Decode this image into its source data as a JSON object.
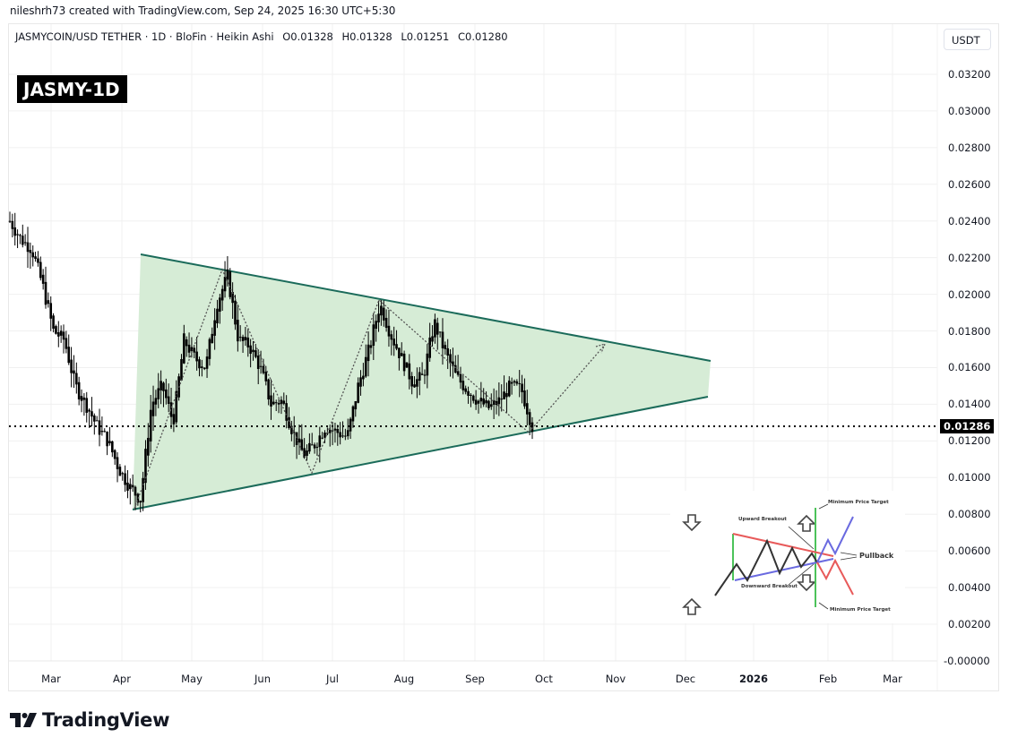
{
  "credit": "nileshrh73 created with TradingView.com, Sep 24, 2025 16:30 UTC+5:30",
  "legend": {
    "symbol": "JASMYCOIN/USD TETHER · 1D · BloFin · Heikin Ashi",
    "open": "O0.01328",
    "high": "H0.01328",
    "low": "L0.01251",
    "close": "C0.01280"
  },
  "badge": "JASMY-1D",
  "currency": "USDT",
  "current_price": "0.01286",
  "logo_text": "TradingView",
  "colors": {
    "triangle_fill": "#d4ebd4",
    "triangle_line": "#1b6b5a",
    "candle": "#000000",
    "grid": "#f0f0f0"
  },
  "chart_data": {
    "type": "candlestick",
    "title": "JASMYCOIN/USD TETHER · 1D · BloFin · Heikin Ashi",
    "ylabel": "USDT",
    "ylim": [
      0.0,
      0.032
    ],
    "y_ticks": [
      "0.03200",
      "0.03000",
      "0.02800",
      "0.02600",
      "0.02400",
      "0.02200",
      "0.02000",
      "0.01800",
      "0.01600",
      "0.01400",
      "0.01200",
      "0.01000",
      "0.00800",
      "0.00600",
      "0.00400",
      "0.00200",
      "-0.00000"
    ],
    "x_ticks": [
      "Mar",
      "Apr",
      "May",
      "Jun",
      "Jul",
      "Aug",
      "Sep",
      "Oct",
      "Nov",
      "Dec",
      "2026",
      "Feb",
      "Mar"
    ],
    "last_price": 0.01286,
    "ohlc_last": {
      "open": 0.01328,
      "high": 0.01328,
      "low": 0.01251,
      "close": 0.0128
    },
    "approx_closes_weekly": [
      0.024,
      0.023,
      0.0225,
      0.0205,
      0.018,
      0.0175,
      0.015,
      0.014,
      0.0128,
      0.012,
      0.0105,
      0.0095,
      0.0088,
      0.014,
      0.015,
      0.013,
      0.0175,
      0.0165,
      0.016,
      0.0195,
      0.021,
      0.0175,
      0.0172,
      0.016,
      0.014,
      0.0142,
      0.0125,
      0.0112,
      0.0118,
      0.0128,
      0.0125,
      0.0122,
      0.015,
      0.017,
      0.0195,
      0.0178,
      0.0165,
      0.0152,
      0.0155,
      0.0185,
      0.0168,
      0.0155,
      0.0148,
      0.0142,
      0.0138,
      0.0142,
      0.015,
      0.0148,
      0.0128
    ],
    "annotations": [
      {
        "type": "symmetrical-triangle",
        "upper_line": [
          [
            0.0222,
            "Apr 6"
          ],
          [
            0.0164,
            "Dec 12"
          ]
        ],
        "lower_line": [
          [
            0.0082,
            "Apr 6"
          ],
          [
            0.0144,
            "Dec 12"
          ]
        ]
      },
      {
        "type": "dotted-zigzag",
        "points": [
          0.0082,
          0.0214,
          0.0103,
          0.0198,
          0.0124,
          0.0172
        ]
      },
      {
        "type": "horizontal-dotted-line",
        "value": 0.01286
      },
      {
        "type": "inset-diagram",
        "labels": [
          "Upward Breakout",
          "Downward Breakout",
          "Minimum Price Target",
          "Minimum Price Target",
          "Pullback"
        ]
      }
    ]
  },
  "inset": {
    "upward_breakout": "Upward Breakout",
    "downward_breakout": "Downward Breakout",
    "min_target_top": "Minimum Price Target",
    "min_target_bottom": "Minimum Price Target",
    "pullback": "Pullback"
  }
}
